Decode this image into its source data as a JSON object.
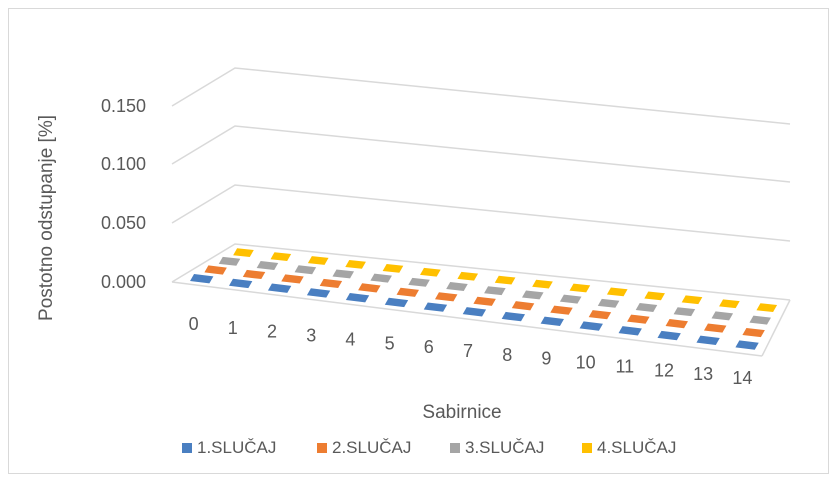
{
  "chart_data": {
    "type": "bar",
    "subtype": "3d-clustered-column",
    "title": "",
    "xlabel": "Sabirnice",
    "ylabel": "Postotno odstupanje [%]",
    "ylim": [
      0,
      0.15
    ],
    "yticks": [
      "0.000",
      "0.050",
      "0.100",
      "0.150"
    ],
    "categories": [
      "0",
      "1",
      "2",
      "3",
      "4",
      "5",
      "6",
      "7",
      "8",
      "9",
      "10",
      "11",
      "12",
      "13",
      "14"
    ],
    "series": [
      {
        "name": "1.SLUČAJ",
        "color": "#4a7fc1",
        "values": [
          0,
          0,
          0,
          0,
          0,
          0,
          0,
          0,
          0,
          0,
          0,
          0,
          0,
          0,
          0
        ]
      },
      {
        "name": "2.SLUČAJ",
        "color": "#ed7d31",
        "values": [
          0,
          0,
          0,
          0,
          0,
          0,
          0,
          0,
          0,
          0,
          0,
          0,
          0,
          0,
          0
        ]
      },
      {
        "name": "3.SLUČAJ",
        "color": "#a5a5a5",
        "values": [
          0,
          0,
          0,
          0,
          0,
          0,
          0,
          0,
          0,
          0,
          0,
          0,
          0,
          0,
          0
        ]
      },
      {
        "name": "4.SLUČAJ",
        "color": "#ffc000",
        "values": [
          0,
          0,
          0,
          0,
          0,
          0,
          0,
          0,
          0,
          0,
          0,
          0,
          0,
          0,
          0
        ]
      }
    ],
    "grid": true,
    "legend": "bottom"
  }
}
